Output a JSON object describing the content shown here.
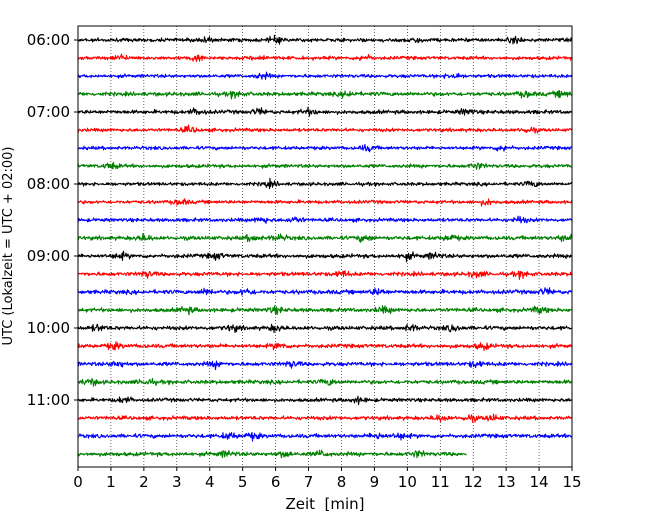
{
  "chart_data": {
    "type": "line",
    "title": "",
    "xlabel": "Zeit  [min]",
    "ylabel": "UTC (Lokalzeit = UTC + 02:00)",
    "xlim": [
      0,
      15
    ],
    "x_ticks": [
      0,
      1,
      2,
      3,
      4,
      5,
      6,
      7,
      8,
      9,
      10,
      11,
      12,
      13,
      14,
      15
    ],
    "x_tick_labels": [
      "0",
      "1",
      "2",
      "3",
      "4",
      "5",
      "6",
      "7",
      "8",
      "9",
      "10",
      "11",
      "12",
      "13",
      "14",
      "15"
    ],
    "y_tick_labels": [
      {
        "label": "06:00",
        "trace_index": 0
      },
      {
        "label": "07:00",
        "trace_index": 4
      },
      {
        "label": "08:00",
        "trace_index": 8
      },
      {
        "label": "09:00",
        "trace_index": 12
      },
      {
        "label": "10:00",
        "trace_index": 16
      },
      {
        "label": "11:00",
        "trace_index": 20
      }
    ],
    "vertical_grid": true,
    "grid_style": "dotted",
    "trace_interval_min": 15,
    "colors": [
      "#000000",
      "#ff0000",
      "#0000ff",
      "#008000"
    ],
    "traces": [
      {
        "start": "06:00",
        "color": "#000000",
        "end_min": 15,
        "amplitude": 0.35,
        "bursts": [
          3.8,
          6.0,
          10.2,
          13.3
        ]
      },
      {
        "start": "06:15",
        "color": "#ff0000",
        "end_min": 15,
        "amplitude": 0.3,
        "bursts": [
          1.3,
          3.6,
          5.5,
          8.7
        ]
      },
      {
        "start": "06:30",
        "color": "#0000ff",
        "end_min": 15,
        "amplitude": 0.3,
        "bursts": [
          5.6,
          11.4
        ]
      },
      {
        "start": "06:45",
        "color": "#008000",
        "end_min": 15,
        "amplitude": 0.45,
        "bursts": [
          4.8,
          8.2,
          13.6,
          14.7
        ]
      },
      {
        "start": "07:00",
        "color": "#000000",
        "end_min": 15,
        "amplitude": 0.4,
        "bursts": [
          3.6,
          5.5,
          7.0,
          11.8
        ]
      },
      {
        "start": "07:15",
        "color": "#ff0000",
        "end_min": 15,
        "amplitude": 0.3,
        "bursts": [
          3.4,
          13.7
        ]
      },
      {
        "start": "07:30",
        "color": "#0000ff",
        "end_min": 15,
        "amplitude": 0.3,
        "bursts": [
          8.8,
          12.9
        ]
      },
      {
        "start": "07:45",
        "color": "#008000",
        "end_min": 15,
        "amplitude": 0.35,
        "bursts": [
          1.0,
          12.1
        ]
      },
      {
        "start": "08:00",
        "color": "#000000",
        "end_min": 15,
        "amplitude": 0.3,
        "bursts": [
          5.8,
          13.8
        ]
      },
      {
        "start": "08:15",
        "color": "#ff0000",
        "end_min": 15,
        "amplitude": 0.3,
        "bursts": [
          3.1,
          12.4
        ]
      },
      {
        "start": "08:30",
        "color": "#0000ff",
        "end_min": 15,
        "amplitude": 0.35,
        "bursts": [
          5.6,
          6.6,
          13.4
        ]
      },
      {
        "start": "08:45",
        "color": "#008000",
        "end_min": 15,
        "amplitude": 0.45,
        "bursts": [
          2.0,
          5.3,
          6.1,
          8.7,
          11.3,
          14.8
        ]
      },
      {
        "start": "09:00",
        "color": "#000000",
        "end_min": 15,
        "amplitude": 0.45,
        "bursts": [
          1.3,
          4.2,
          10.0,
          10.8
        ]
      },
      {
        "start": "09:15",
        "color": "#ff0000",
        "end_min": 15,
        "amplitude": 0.45,
        "bursts": [
          2.1,
          8.0,
          12.1,
          13.5
        ]
      },
      {
        "start": "09:30",
        "color": "#0000ff",
        "end_min": 15,
        "amplitude": 0.5,
        "bursts": [
          3.9,
          5.1,
          9.1,
          14.2
        ]
      },
      {
        "start": "09:45",
        "color": "#008000",
        "end_min": 15,
        "amplitude": 0.45,
        "bursts": [
          3.3,
          6.0,
          9.3,
          14.0
        ]
      },
      {
        "start": "10:00",
        "color": "#000000",
        "end_min": 15,
        "amplitude": 0.45,
        "bursts": [
          0.6,
          4.7,
          6.0,
          10.1,
          11.4
        ]
      },
      {
        "start": "10:15",
        "color": "#ff0000",
        "end_min": 15,
        "amplitude": 0.45,
        "bursts": [
          1.1,
          6.1,
          12.3
        ]
      },
      {
        "start": "10:30",
        "color": "#0000ff",
        "end_min": 15,
        "amplitude": 0.45,
        "bursts": [
          1.2,
          4.2,
          6.5,
          12.1
        ]
      },
      {
        "start": "10:45",
        "color": "#008000",
        "end_min": 15,
        "amplitude": 0.45,
        "bursts": [
          0.4,
          2.1,
          7.6
        ]
      },
      {
        "start": "11:00",
        "color": "#000000",
        "end_min": 15,
        "amplitude": 0.35,
        "bursts": [
          1.4,
          8.5
        ]
      },
      {
        "start": "11:15",
        "color": "#ff0000",
        "end_min": 15,
        "amplitude": 0.4,
        "bursts": [
          11.0,
          11.9,
          12.6
        ]
      },
      {
        "start": "11:30",
        "color": "#0000ff",
        "end_min": 15,
        "amplitude": 0.45,
        "bursts": [
          4.6,
          5.3,
          9.1,
          9.8
        ]
      },
      {
        "start": "11:45",
        "color": "#008000",
        "end_min": 11.8,
        "amplitude": 0.45,
        "bursts": [
          4.5,
          6.3,
          7.4,
          10.3
        ]
      }
    ]
  }
}
